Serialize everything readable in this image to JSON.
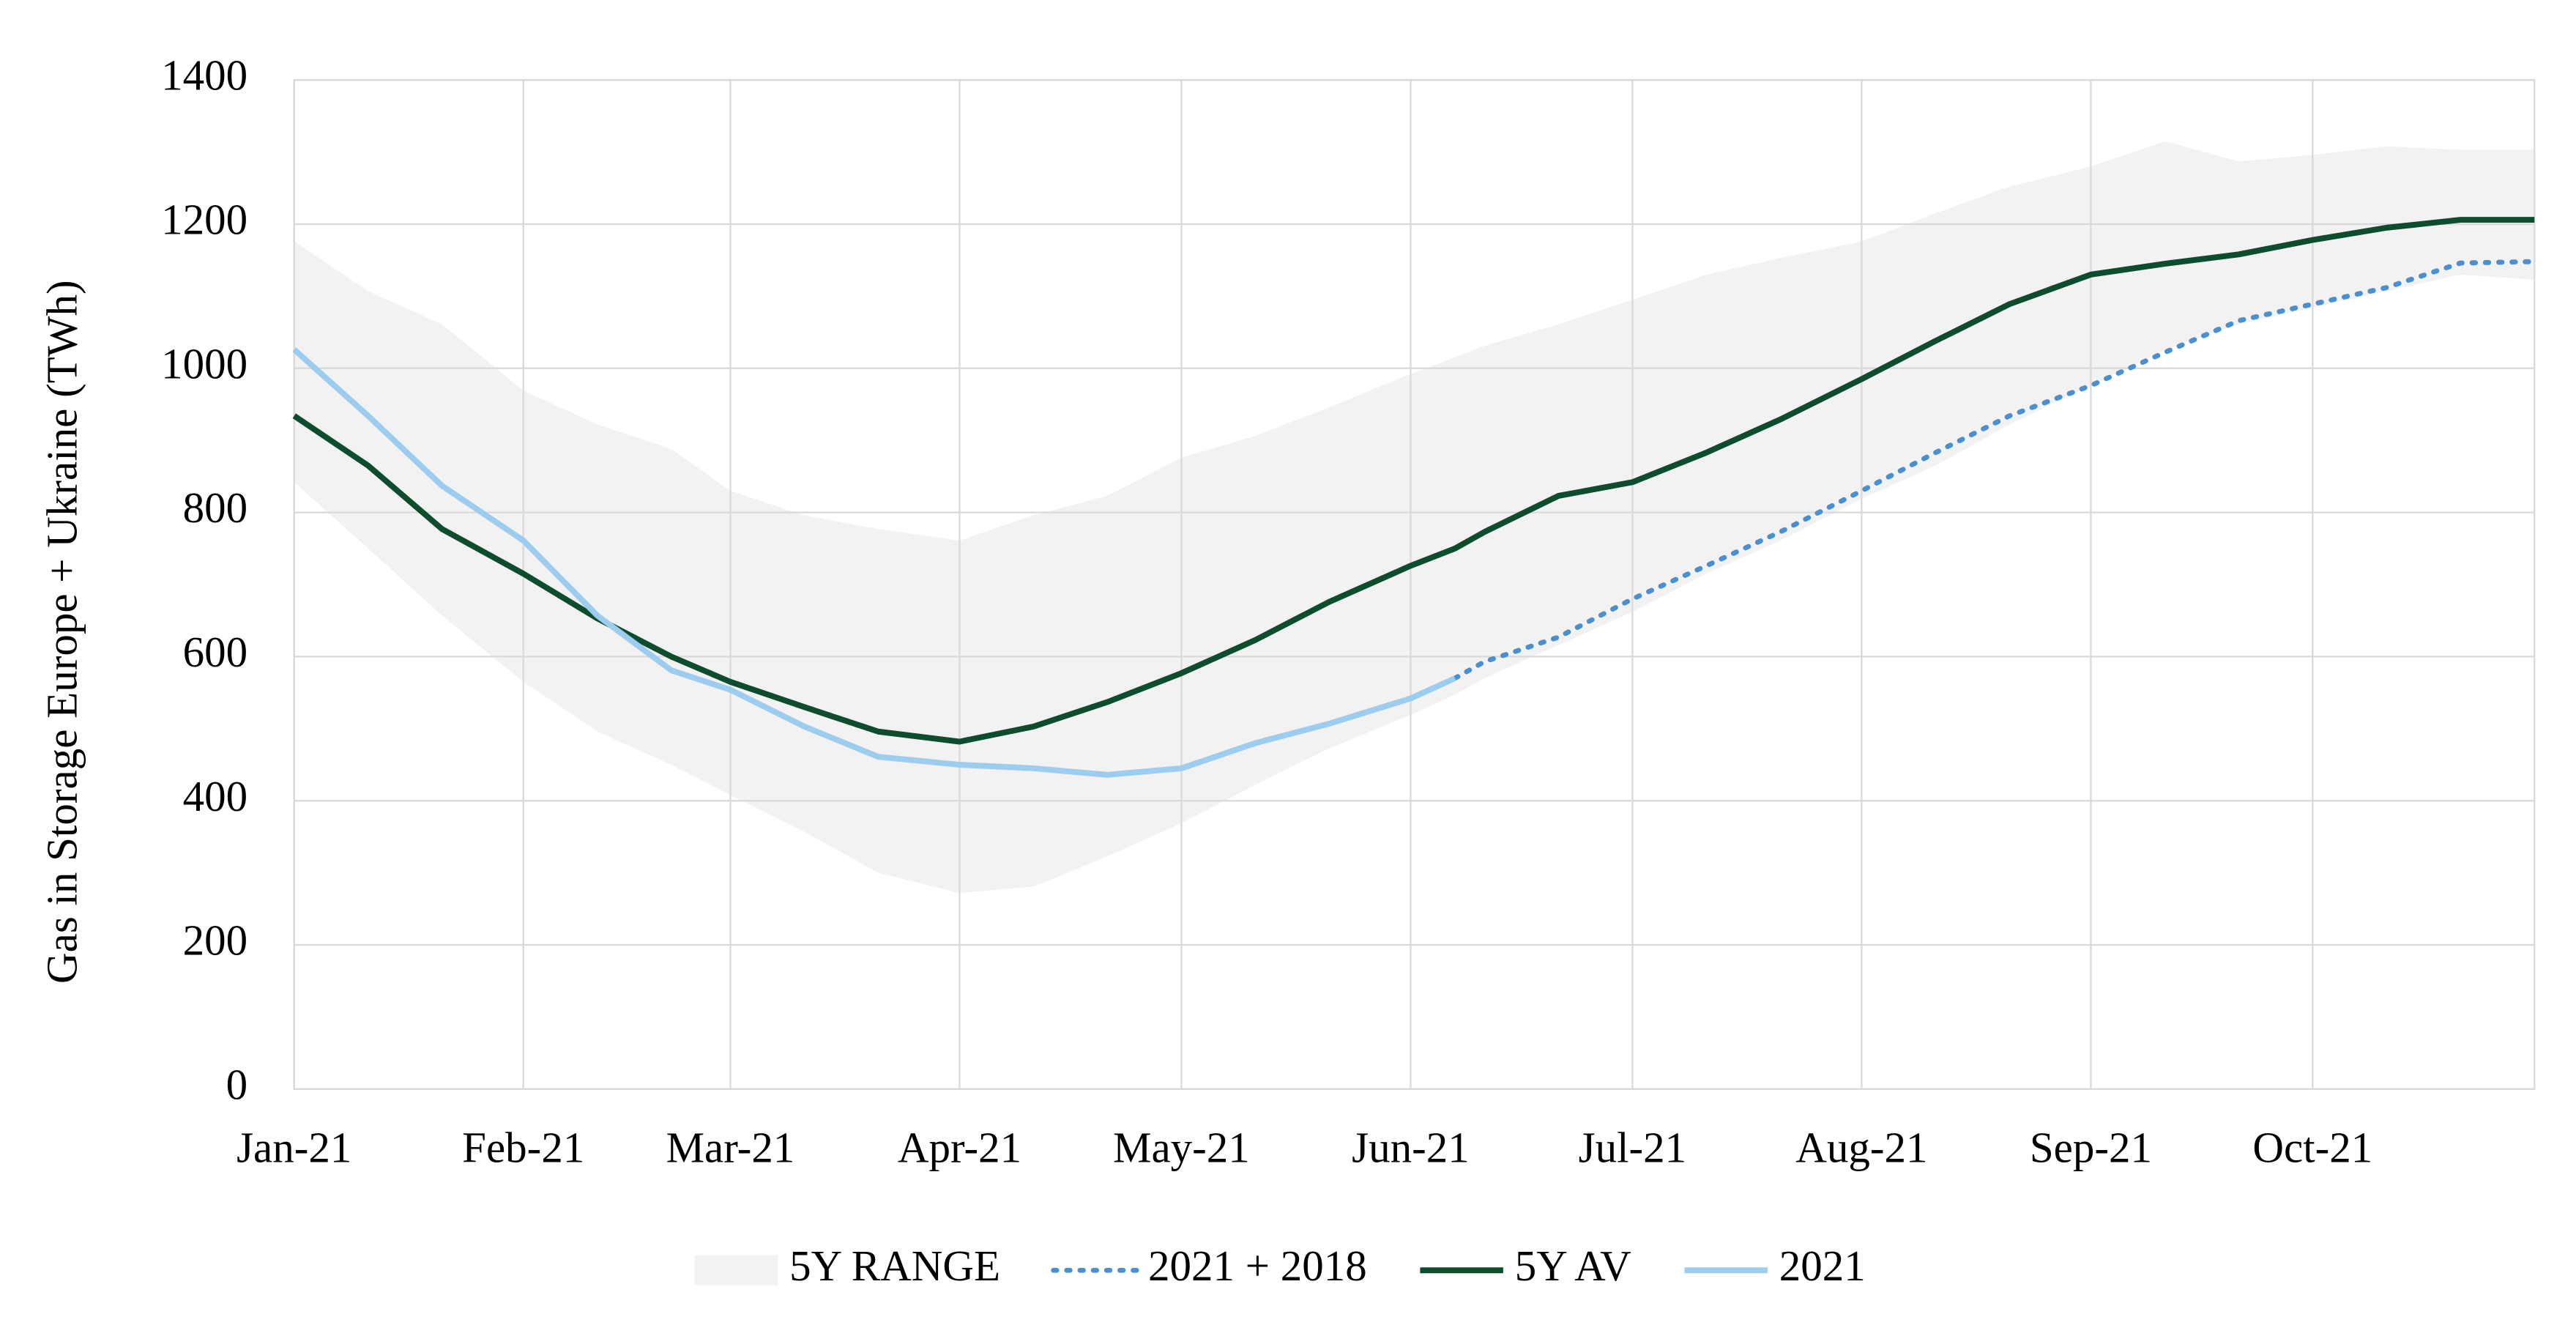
{
  "chart_data": {
    "type": "line",
    "y_label": "Gas in Storage Europe + Ukraine (TWh)",
    "x": [
      1,
      11,
      21,
      32,
      42,
      52,
      60,
      70,
      80,
      91,
      101,
      111,
      121,
      131,
      141,
      152,
      158,
      162,
      172,
      182,
      192,
      202,
      213,
      223,
      233,
      244,
      254,
      264,
      274,
      284,
      294,
      304
    ],
    "xlim": [
      1,
      304
    ],
    "xticks": [
      {
        "value": 1,
        "label": "Jan-21"
      },
      {
        "value": 32,
        "label": "Feb-21"
      },
      {
        "value": 60,
        "label": "Mar-21"
      },
      {
        "value": 91,
        "label": "Apr-21"
      },
      {
        "value": 121,
        "label": "May-21"
      },
      {
        "value": 152,
        "label": "Jun-21"
      },
      {
        "value": 182,
        "label": "Jul-21"
      },
      {
        "value": 213,
        "label": "Aug-21"
      },
      {
        "value": 244,
        "label": "Sep-21"
      },
      {
        "value": 274,
        "label": "Oct-21"
      }
    ],
    "ylim": [
      0,
      1400
    ],
    "yticks": [
      0,
      200,
      400,
      600,
      800,
      1000,
      1200,
      1400
    ],
    "grid": true,
    "legend": "bottom",
    "series": [
      {
        "name": "5Y RANGE",
        "kind": "band",
        "color": "#f2f2f2",
        "low": [
          842,
          750,
          657,
          565,
          496,
          450,
          408,
          357,
          300,
          272,
          281,
          323,
          369,
          422,
          473,
          519,
          547,
          570,
          616,
          662,
          715,
          761,
          819,
          865,
          922,
          976,
          1026,
          1061,
          1084,
          1107,
          1130,
          1123
        ],
        "high": [
          1176,
          1107,
          1061,
          969,
          922,
          888,
          830,
          796,
          777,
          761,
          796,
          823,
          876,
          906,
          946,
          992,
          1015,
          1031,
          1061,
          1095,
          1130,
          1153,
          1176,
          1215,
          1252,
          1280,
          1315,
          1287,
          1296,
          1308,
          1303,
          1303
        ]
      },
      {
        "name": "2021 + 2018",
        "kind": "line",
        "line_style": "dotted",
        "color": "#4a8fd0",
        "values": [
          null,
          null,
          null,
          null,
          null,
          null,
          null,
          null,
          null,
          null,
          null,
          null,
          null,
          null,
          null,
          null,
          570,
          593,
          627,
          680,
          726,
          773,
          830,
          883,
          934,
          976,
          1022,
          1066,
          1089,
          1112,
          1146,
          1148
        ]
      },
      {
        "name": "5Y AV",
        "kind": "line",
        "line_style": "solid",
        "color": "#0d4d2e",
        "values": [
          934,
          865,
          777,
          715,
          653,
          600,
          565,
          530,
          496,
          482,
          503,
          537,
          577,
          623,
          676,
          726,
          750,
          773,
          823,
          842,
          883,
          929,
          985,
          1038,
          1089,
          1130,
          1145,
          1158,
          1178,
          1195,
          1206,
          1206
        ]
      },
      {
        "name": "2021",
        "kind": "line",
        "line_style": "solid",
        "color": "#9dcdee",
        "values": [
          1026,
          934,
          837,
          761,
          657,
          581,
          554,
          503,
          461,
          450,
          445,
          436,
          445,
          480,
          507,
          542,
          570,
          null,
          null,
          null,
          null,
          null,
          null,
          null,
          null,
          null,
          null,
          null,
          null,
          null,
          null,
          null
        ]
      }
    ]
  }
}
